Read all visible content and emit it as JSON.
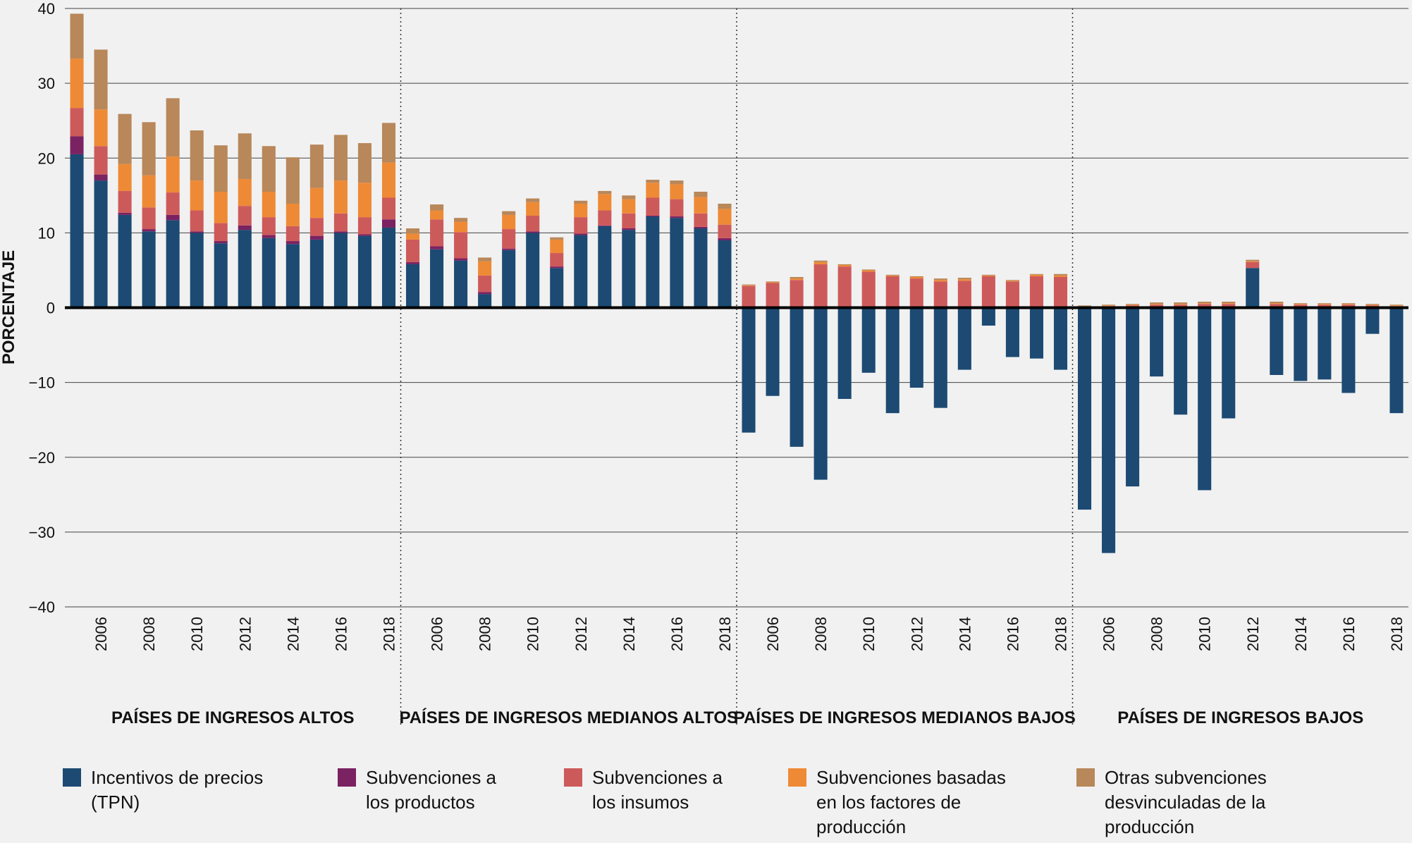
{
  "chart_data": [
    {
      "type": "bar",
      "stacked": true,
      "title": "PAÍSES DE INGRESOS ALTOS",
      "y_label": "PORCENTAJE",
      "ylim": [
        -40,
        40
      ],
      "yticks": [
        {
          "value": -40,
          "label": "−40"
        },
        {
          "value": -30,
          "label": "−30"
        },
        {
          "value": -20,
          "label": "−20"
        },
        {
          "value": -10,
          "label": "−10"
        },
        0,
        10,
        20,
        30,
        40
      ],
      "grid": true,
      "categories": [
        null,
        "2006",
        null,
        "2008",
        null,
        "2010",
        null,
        "2012",
        null,
        "2014",
        null,
        "2016",
        null,
        "2018"
      ],
      "series": [
        {
          "name": "Incentivos de precios (TPN)",
          "color": "#1c4a73",
          "values": [
            20.5,
            17.0,
            12.4,
            10.2,
            11.7,
            10.0,
            8.6,
            10.4,
            9.3,
            8.5,
            9.1,
            10.0,
            9.6,
            10.7
          ]
        },
        {
          "name": "Subvenciones a los productos",
          "color": "#7b2262",
          "values": [
            2.4,
            0.8,
            0.3,
            0.3,
            0.7,
            0.2,
            0.3,
            0.6,
            0.4,
            0.4,
            0.5,
            0.2,
            0.2,
            1.1
          ]
        },
        {
          "name": "Subvenciones a los insumos",
          "color": "#cd5a5b",
          "values": [
            3.8,
            3.8,
            2.9,
            2.9,
            3.0,
            2.8,
            2.4,
            2.6,
            2.4,
            2.0,
            2.4,
            2.4,
            2.3,
            2.9
          ]
        },
        {
          "name": "Subvenciones basadas en los factores de producción",
          "color": "#ee8a35",
          "values": [
            6.6,
            4.9,
            3.6,
            4.3,
            4.8,
            4.0,
            4.2,
            3.6,
            3.4,
            3.0,
            4.0,
            4.4,
            4.6,
            4.7
          ]
        },
        {
          "name": "Otras subvenciones desvinculadas de la producción",
          "color": "#b8875a",
          "values": [
            6.0,
            8.0,
            6.7,
            7.1,
            7.8,
            6.7,
            6.2,
            6.1,
            6.1,
            6.2,
            5.8,
            6.1,
            5.3,
            5.3
          ]
        }
      ]
    },
    {
      "type": "bar",
      "stacked": true,
      "title": "PAÍSES DE INGRESOS MEDIANOS ALTOS",
      "categories": [
        null,
        "2006",
        null,
        "2008",
        null,
        "2010",
        null,
        "2012",
        null,
        "2014",
        null,
        "2016",
        null,
        "2018"
      ],
      "series": [
        {
          "values": [
            5.8,
            7.8,
            6.3,
            1.8,
            7.7,
            10.0,
            5.3,
            9.7,
            10.9,
            10.4,
            12.2,
            12.0,
            10.6,
            9.0
          ]
        },
        {
          "values": [
            0.3,
            0.4,
            0.3,
            0.3,
            0.2,
            0.2,
            0.2,
            0.2,
            0.1,
            0.2,
            0.1,
            0.2,
            0.2,
            0.3
          ]
        },
        {
          "values": [
            3.0,
            3.6,
            3.5,
            2.2,
            2.6,
            2.1,
            1.8,
            2.2,
            2.0,
            2.0,
            2.4,
            2.3,
            1.8,
            1.8
          ]
        },
        {
          "values": [
            0.8,
            1.2,
            1.4,
            1.9,
            1.9,
            1.8,
            1.8,
            1.8,
            2.2,
            1.9,
            2.0,
            2.0,
            2.2,
            2.1
          ]
        },
        {
          "values": [
            0.7,
            0.8,
            0.5,
            0.5,
            0.5,
            0.5,
            0.3,
            0.4,
            0.4,
            0.5,
            0.4,
            0.5,
            0.7,
            0.7
          ]
        }
      ]
    },
    {
      "type": "bar",
      "stacked": true,
      "title": "PAÍSES DE INGRESOS MEDIANOS BAJOS",
      "categories": [
        null,
        "2006",
        null,
        "2008",
        null,
        "2010",
        null,
        "2012",
        null,
        "2014",
        null,
        "2016",
        null,
        "2018"
      ],
      "series": [
        {
          "values": [
            -16.7,
            -11.8,
            -18.6,
            -23.0,
            -12.2,
            -8.7,
            -14.1,
            -10.7,
            -13.4,
            -8.3,
            -2.4,
            -6.6,
            -6.8,
            -8.3
          ]
        },
        {
          "values": [
            0,
            0,
            0,
            0,
            0,
            0,
            0,
            0,
            0,
            0,
            0,
            0,
            0,
            0
          ]
        },
        {
          "values": [
            2.9,
            3.3,
            3.7,
            5.8,
            5.5,
            4.8,
            4.2,
            3.9,
            3.5,
            3.6,
            4.2,
            3.5,
            4.2,
            4.1
          ]
        },
        {
          "values": [
            0.1,
            0.1,
            0.2,
            0.3,
            0.2,
            0.2,
            0.1,
            0.2,
            0.2,
            0.2,
            0.1,
            0.1,
            0.2,
            0.2
          ]
        },
        {
          "values": [
            0.1,
            0.1,
            0.2,
            0.2,
            0.1,
            0.1,
            0.1,
            0.1,
            0.2,
            0.2,
            0.1,
            0.1,
            0.1,
            0.2
          ]
        }
      ]
    },
    {
      "type": "bar",
      "stacked": true,
      "title": "PAÍSES DE INGRESOS BAJOS",
      "categories": [
        null,
        "2006",
        null,
        "2008",
        null,
        "2010",
        null,
        "2012",
        null,
        "2014",
        null,
        "2016",
        null,
        "2018"
      ],
      "series": [
        {
          "values": [
            -27.0,
            -32.8,
            -23.9,
            -9.2,
            -14.3,
            -24.4,
            -14.8,
            5.3,
            -9.0,
            -9.8,
            -9.6,
            -11.4,
            -3.5,
            -14.1
          ]
        },
        {
          "values": [
            0,
            0,
            0,
            0,
            0,
            0,
            0,
            0,
            0,
            0,
            0,
            0,
            0,
            0
          ]
        },
        {
          "values": [
            0.1,
            0.2,
            0.3,
            0.4,
            0.4,
            0.5,
            0.5,
            0.8,
            0.5,
            0.4,
            0.4,
            0.4,
            0.3,
            0.2
          ]
        },
        {
          "values": [
            0.1,
            0.1,
            0.1,
            0.1,
            0.1,
            0.1,
            0.1,
            0.1,
            0.1,
            0.1,
            0.1,
            0.1,
            0.1,
            0.1
          ]
        },
        {
          "values": [
            0.1,
            0.1,
            0.1,
            0.2,
            0.2,
            0.2,
            0.2,
            0.2,
            0.2,
            0.1,
            0.1,
            0.1,
            0.1,
            0.1
          ]
        }
      ]
    }
  ]
}
